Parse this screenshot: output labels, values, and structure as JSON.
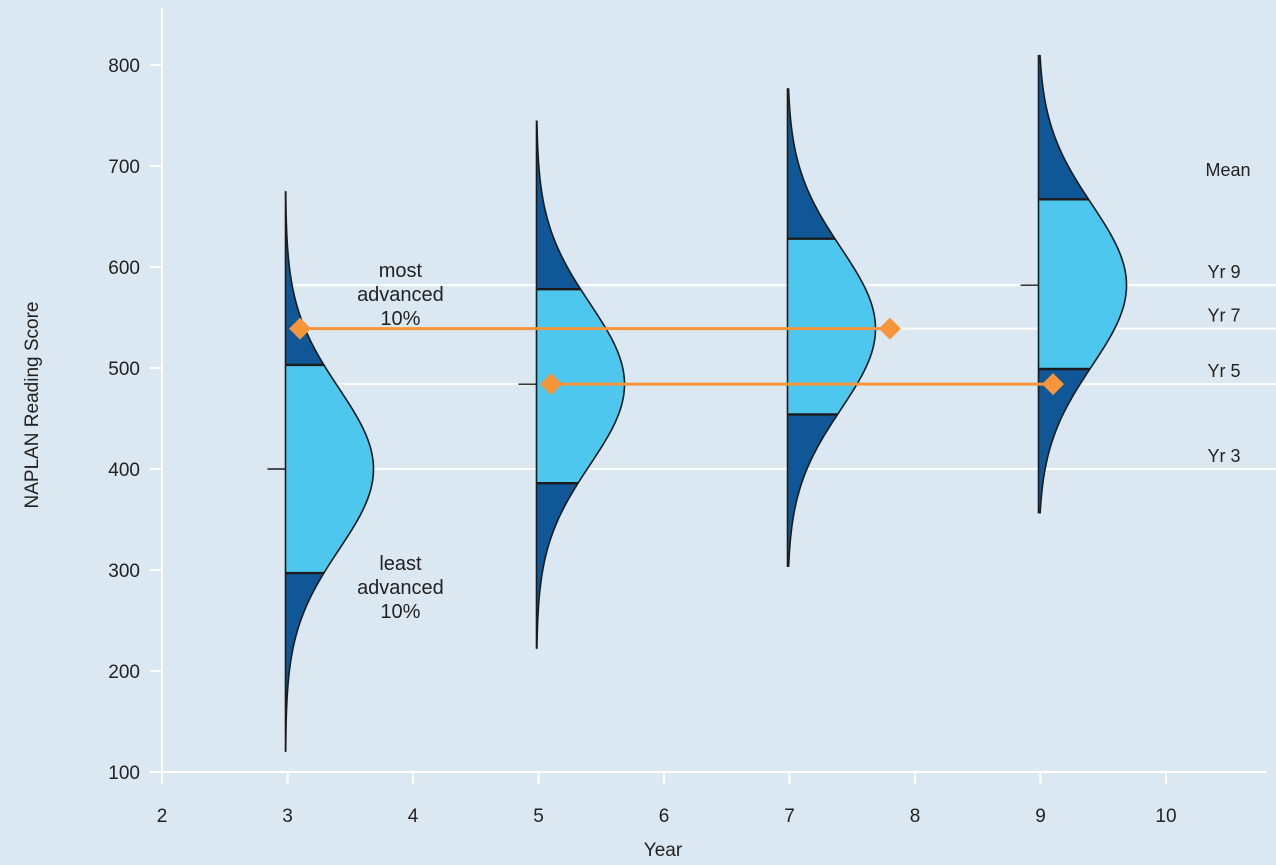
{
  "colors": {
    "background": "#dce8f1",
    "tail_fill": "#0f5796",
    "middle_fill": "#4ec7ef",
    "outline": "#1b1b1b",
    "marker": "#f7953b",
    "reference_line": "#ffffff"
  },
  "chart_data": {
    "type": "violin",
    "title": "",
    "xlabel": "Year",
    "ylabel": "NAPLAN Reading Score",
    "xlim": [
      2,
      10.8
    ],
    "ylim": [
      100,
      800
    ],
    "x_ticks": [
      "2",
      "3",
      "4",
      "5",
      "6",
      "7",
      "8",
      "9",
      "10"
    ],
    "y_ticks": [
      "100",
      "200",
      "300",
      "400",
      "500",
      "600",
      "700",
      "800"
    ],
    "grid": false,
    "distributions": [
      {
        "year": 3,
        "mean": 400,
        "p10": 297,
        "p90": 503,
        "min": 120,
        "max": 675
      },
      {
        "year": 5,
        "mean": 484,
        "p10": 386,
        "p90": 578,
        "min": 222,
        "max": 745
      },
      {
        "year": 7,
        "mean": 539,
        "p10": 454,
        "p90": 628,
        "min": 303,
        "max": 777
      },
      {
        "year": 9,
        "mean": 582,
        "p10": 499,
        "p90": 667,
        "min": 356,
        "max": 810
      }
    ],
    "mean_lines": {
      "header": "Mean",
      "items": [
        {
          "label": "Yr 9",
          "value": 582
        },
        {
          "label": "Yr 7",
          "value": 539
        },
        {
          "label": "Yr 5",
          "value": 484
        },
        {
          "label": "Yr 3",
          "value": 400
        }
      ]
    },
    "comparisons": [
      {
        "x1": 3.1,
        "x2": 7.8,
        "value": 539
      },
      {
        "x1": 5.1,
        "x2": 9.1,
        "value": 484
      }
    ],
    "annotations": [
      {
        "lines": [
          "most",
          "advanced",
          "10%"
        ],
        "x": 3.9,
        "y": 590
      },
      {
        "lines": [
          "least",
          "advanced",
          "10%"
        ],
        "x": 3.9,
        "y": 300
      }
    ]
  }
}
